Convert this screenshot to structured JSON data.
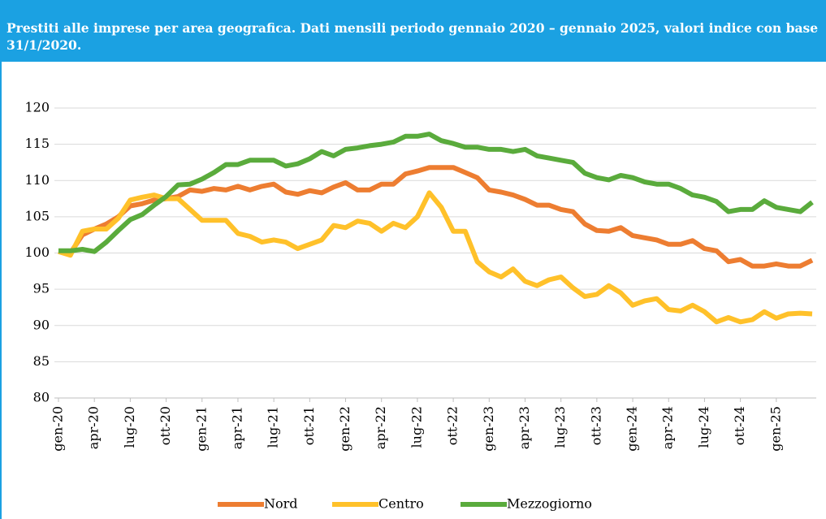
{
  "chart_data": {
    "type": "line",
    "title": "Prestiti alle imprese per area geografica. Dati mensili periodo gennaio 2020 – gennaio 2025, valori indice con base 31/1/2020.",
    "categories": [
      "gen-20",
      null,
      null,
      "apr-20",
      null,
      null,
      "lug-20",
      null,
      null,
      "ott-20",
      null,
      null,
      "gen-21",
      null,
      null,
      "apr-21",
      null,
      null,
      "lug-21",
      null,
      null,
      "ott-21",
      null,
      null,
      "gen-22",
      null,
      null,
      "apr-22",
      null,
      null,
      "lug-22",
      null,
      null,
      "ott-22",
      null,
      null,
      "gen-23",
      null,
      null,
      "apr-23",
      null,
      null,
      "lug-23",
      null,
      null,
      "ott-23",
      null,
      null,
      "gen-24",
      null,
      null,
      "apr-24",
      null,
      null,
      "lug-24",
      null,
      null,
      "ott-24",
      null,
      null,
      "gen-25",
      null,
      null,
      null
    ],
    "series": [
      {
        "name": "Nord",
        "color": "#ed7d31",
        "values": [
          100.2,
          100.0,
          102.5,
          103.3,
          104.0,
          105.0,
          106.5,
          106.8,
          107.3,
          107.5,
          107.8,
          108.7,
          108.5,
          108.9,
          108.7,
          109.2,
          108.7,
          109.2,
          109.5,
          108.4,
          108.1,
          108.6,
          108.3,
          109.1,
          109.7,
          108.7,
          108.7,
          109.5,
          109.5,
          110.9,
          111.3,
          111.8,
          111.8,
          111.8,
          111.1,
          110.4,
          108.7,
          108.4,
          108.0,
          107.4,
          106.6,
          106.6,
          106.0,
          105.7,
          104.0,
          103.1,
          103.0,
          103.5,
          102.4,
          102.1,
          101.8,
          101.2,
          101.2,
          101.7,
          100.6,
          100.3,
          98.8,
          99.1,
          98.2,
          98.2,
          98.5,
          98.2,
          98.2,
          99.0
        ]
      },
      {
        "name": "Centro",
        "color": "#ffc12a",
        "values": [
          100.2,
          99.7,
          103.0,
          103.3,
          103.3,
          104.8,
          107.3,
          107.7,
          108.0,
          107.5,
          107.5,
          106.0,
          104.5,
          104.5,
          104.5,
          102.7,
          102.3,
          101.5,
          101.8,
          101.5,
          100.6,
          101.2,
          101.8,
          103.8,
          103.5,
          104.4,
          104.1,
          103.0,
          104.1,
          103.5,
          105.0,
          108.3,
          106.3,
          103.0,
          103.0,
          98.8,
          97.4,
          96.7,
          97.8,
          96.1,
          95.5,
          96.3,
          96.7,
          95.2,
          94.0,
          94.3,
          95.5,
          94.5,
          92.8,
          93.4,
          93.7,
          92.2,
          92.0,
          92.8,
          91.9,
          90.5,
          91.1,
          90.5,
          90.8,
          91.9,
          91.0,
          91.6,
          91.7,
          91.6
        ]
      },
      {
        "name": "Mezzogiorno",
        "color": "#5aab3c",
        "values": [
          100.3,
          100.3,
          100.5,
          100.2,
          101.5,
          103.1,
          104.6,
          105.3,
          106.6,
          107.8,
          109.4,
          109.5,
          110.2,
          111.1,
          112.2,
          112.2,
          112.8,
          112.8,
          112.8,
          112.0,
          112.3,
          113.0,
          114.0,
          113.4,
          114.3,
          114.5,
          114.8,
          115.0,
          115.3,
          116.1,
          116.1,
          116.4,
          115.5,
          115.1,
          114.6,
          114.6,
          114.3,
          114.3,
          114.0,
          114.3,
          113.4,
          113.1,
          112.8,
          112.5,
          111.0,
          110.4,
          110.1,
          110.7,
          110.4,
          109.8,
          109.5,
          109.5,
          108.9,
          108.0,
          107.7,
          107.1,
          105.7,
          106.0,
          106.0,
          107.2,
          106.3,
          106.0,
          105.7,
          107.0
        ]
      }
    ],
    "ylim": [
      80,
      120
    ],
    "yticks": [
      80,
      85,
      90,
      95,
      100,
      105,
      110,
      115,
      120
    ],
    "grid": true,
    "legend": "bottom"
  }
}
